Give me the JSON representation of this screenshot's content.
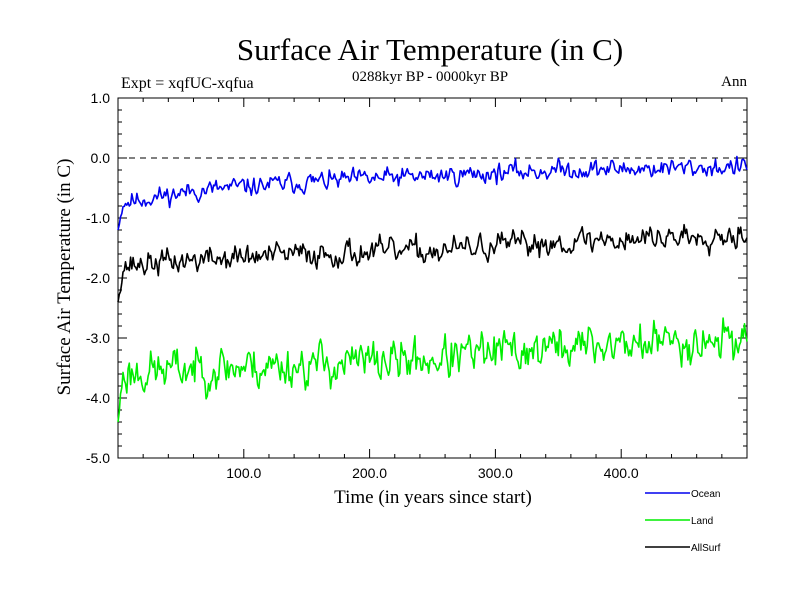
{
  "chart_data": {
    "type": "line",
    "title": "Surface Air Temperature (in C)",
    "subtitle": "0288kyr BP - 0000kyr BP",
    "left_label": "Expt = xqfUC-xqfua",
    "right_label": "Ann",
    "xlabel": "Time (in years since start)",
    "ylabel": "Surface Air Temperature (in C)",
    "xlim": [
      0,
      500
    ],
    "ylim": [
      -5.0,
      1.0
    ],
    "x_ticks": [
      {
        "value": 100,
        "label": "100.0"
      },
      {
        "value": 200,
        "label": "200.0"
      },
      {
        "value": 300,
        "label": "300.0"
      },
      {
        "value": 400,
        "label": "400.0"
      }
    ],
    "y_ticks": [
      {
        "value": 1.0,
        "label": "1.0"
      },
      {
        "value": 0.0,
        "label": "0.0"
      },
      {
        "value": -1.0,
        "label": "-1.0"
      },
      {
        "value": -2.0,
        "label": "-2.0"
      },
      {
        "value": -3.0,
        "label": "-3.0"
      },
      {
        "value": -4.0,
        "label": "-4.0"
      },
      {
        "value": -5.0,
        "label": "-5.0"
      }
    ],
    "reference_line": {
      "y": 0.0,
      "style": "dashed"
    },
    "legend_position": "bottom-right",
    "series": [
      {
        "name": "Ocean",
        "color": "#0000ee",
        "start": -1.2,
        "trend": [
          [
            0,
            -0.75
          ],
          [
            60,
            -0.55
          ],
          [
            150,
            -0.4
          ],
          [
            250,
            -0.3
          ],
          [
            350,
            -0.2
          ],
          [
            500,
            -0.15
          ]
        ],
        "noise": 0.09,
        "seed": 11
      },
      {
        "name": "Land",
        "color": "#00ee00",
        "start": -4.4,
        "trend": [
          [
            0,
            -3.6
          ],
          [
            60,
            -3.5
          ],
          [
            150,
            -3.45
          ],
          [
            250,
            -3.35
          ],
          [
            350,
            -3.15
          ],
          [
            500,
            -3.0
          ]
        ],
        "noise": 0.2,
        "seed": 23
      },
      {
        "name": "AllSurf",
        "color": "#000000",
        "start": -2.4,
        "trend": [
          [
            0,
            -1.8
          ],
          [
            60,
            -1.7
          ],
          [
            150,
            -1.6
          ],
          [
            250,
            -1.55
          ],
          [
            350,
            -1.4
          ],
          [
            500,
            -1.25
          ]
        ],
        "noise": 0.12,
        "seed": 37
      }
    ]
  }
}
